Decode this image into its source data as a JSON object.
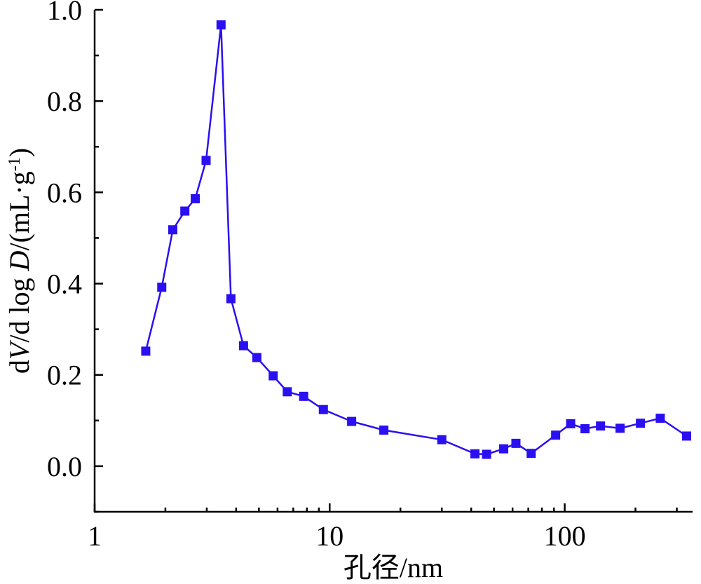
{
  "chart_data": {
    "type": "line",
    "xlabel": "孔径/nm",
    "ylabel": {
      "prefix": "d",
      "var1": "V",
      "mid": "/d log ",
      "var2": "D",
      "unit_open": "/(mL·g",
      "unit_exp": "-1",
      "unit_close": ")"
    },
    "x_scale": "log",
    "xlim": [
      1,
      350
    ],
    "ylim": [
      -0.1,
      1.0
    ],
    "x_ticks": [
      1,
      10,
      100
    ],
    "x_tick_labels": [
      "1",
      "10",
      "100"
    ],
    "y_ticks": [
      0.0,
      0.2,
      0.4,
      0.6,
      0.8,
      1.0
    ],
    "y_tick_labels": [
      "0.0",
      "0.2",
      "0.4",
      "0.6",
      "0.8",
      "1.0"
    ],
    "grid": false,
    "legend": "none",
    "series_color": "#2a0ff2",
    "series": [
      {
        "marker": "square",
        "x": [
          1.65,
          1.93,
          2.15,
          2.42,
          2.68,
          2.98,
          3.45,
          3.8,
          4.3,
          4.9,
          5.75,
          6.6,
          7.75,
          9.4,
          12.4,
          17.0,
          30.0,
          41.5,
          46.5,
          55.0,
          62.0,
          72.0,
          91.5,
          106.0,
          122.0,
          142.0,
          172.0,
          210.0,
          255.0,
          330.0
        ],
        "y": [
          0.252,
          0.392,
          0.518,
          0.559,
          0.586,
          0.67,
          0.967,
          0.367,
          0.264,
          0.238,
          0.198,
          0.163,
          0.153,
          0.124,
          0.098,
          0.079,
          0.058,
          0.027,
          0.026,
          0.038,
          0.05,
          0.028,
          0.068,
          0.093,
          0.082,
          0.088,
          0.083,
          0.094,
          0.105,
          0.066
        ]
      }
    ]
  }
}
